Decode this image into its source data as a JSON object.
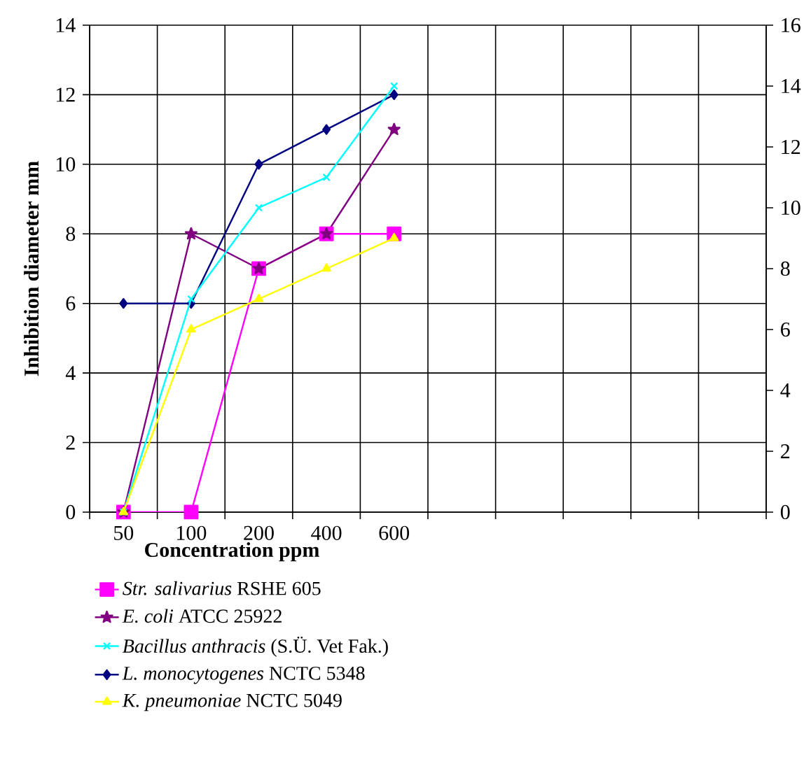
{
  "chart_data": {
    "type": "line",
    "xlabel": "Concentration ppm",
    "ylabel": "Inhibition diameter mm",
    "categories": [
      "50",
      "100",
      "200",
      "400",
      "600",
      null,
      null,
      null,
      null,
      null
    ],
    "ylim": [
      0,
      14
    ],
    "yticks": [
      0,
      2,
      4,
      6,
      8,
      10,
      12,
      14
    ],
    "y2lim": [
      0,
      16
    ],
    "y2ticks": [
      0,
      2,
      4,
      6,
      8,
      10,
      12,
      14,
      16
    ],
    "grid": true,
    "legend": "bottom",
    "series": [
      {
        "name": "*Str. salivarius* RSHE 605",
        "color": "#ff00ff",
        "marker": "square",
        "values": [
          0,
          0,
          7,
          8,
          8,
          null,
          null,
          null,
          null,
          null
        ]
      },
      {
        "name": "*E. coli* ATCC 25922",
        "color": "#800080",
        "marker": "star",
        "values": [
          0,
          8,
          7,
          8,
          11,
          null,
          null,
          null,
          null,
          null
        ]
      },
      {
        "name": "*Bacillus anthracis* (S.Ü. Vet Fak.)",
        "color": "#00ffff",
        "marker": "cross",
        "axis": "y2",
        "values": [
          0,
          7,
          10,
          11,
          14,
          null,
          null,
          null,
          null,
          null
        ]
      },
      {
        "name": "*L. monocytogenes* NCTC 5348",
        "color": "#000080",
        "marker": "diamond",
        "values": [
          6,
          6,
          10,
          11,
          12,
          null,
          null,
          null,
          null,
          null
        ]
      },
      {
        "name": "*K. pneumoniae* NCTC 5049",
        "color": "#ffff00",
        "marker": "triangle",
        "axis": "y2",
        "values": [
          0,
          6,
          7,
          8,
          9,
          null,
          null,
          null,
          null,
          null
        ]
      }
    ]
  }
}
